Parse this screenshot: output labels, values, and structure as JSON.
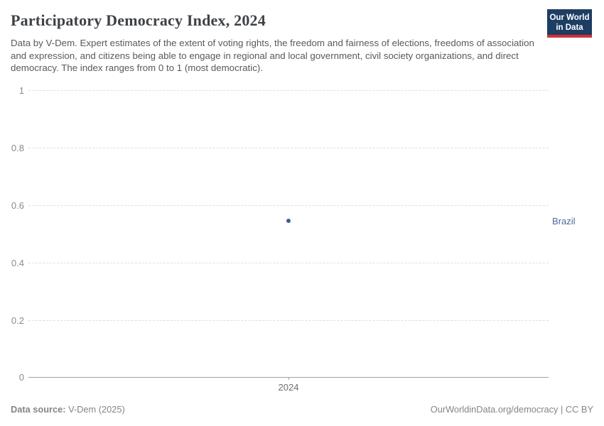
{
  "header": {
    "title": "Participatory Democracy Index, 2024",
    "subtitle": "Data by V-Dem. Expert estimates of the extent of voting rights, the freedom and fairness of elections, freedoms of association and expression, and citizens being able to engage in regional and local government, civil society organizations, and direct democracy. The index ranges from 0 to 1 (most democratic).",
    "logo": {
      "line1": "Our World",
      "line2": "in Data",
      "bg_color": "#1d3d63",
      "accent_color": "#cf3036"
    }
  },
  "chart_data": {
    "type": "scatter",
    "title": "Participatory Democracy Index, 2024",
    "x": [
      2024
    ],
    "series": [
      {
        "name": "Brazil",
        "values": [
          0.54
        ]
      }
    ],
    "xlabel": "",
    "ylabel": "",
    "ylim": [
      0,
      1
    ],
    "xticks": [
      "2024"
    ],
    "yticks": [
      "1",
      "0.8",
      "0.6",
      "0.4",
      "0.2",
      "0"
    ],
    "grid": "horizontal dashed",
    "legend_position": "right-of-point",
    "point_color": "#3d5c94",
    "entity_label_color": "#4c6a9c"
  },
  "footer": {
    "source_label": "Data source:",
    "source_value": "V-Dem (2025)",
    "link": "OurWorldinData.org/democracy | CC BY"
  }
}
